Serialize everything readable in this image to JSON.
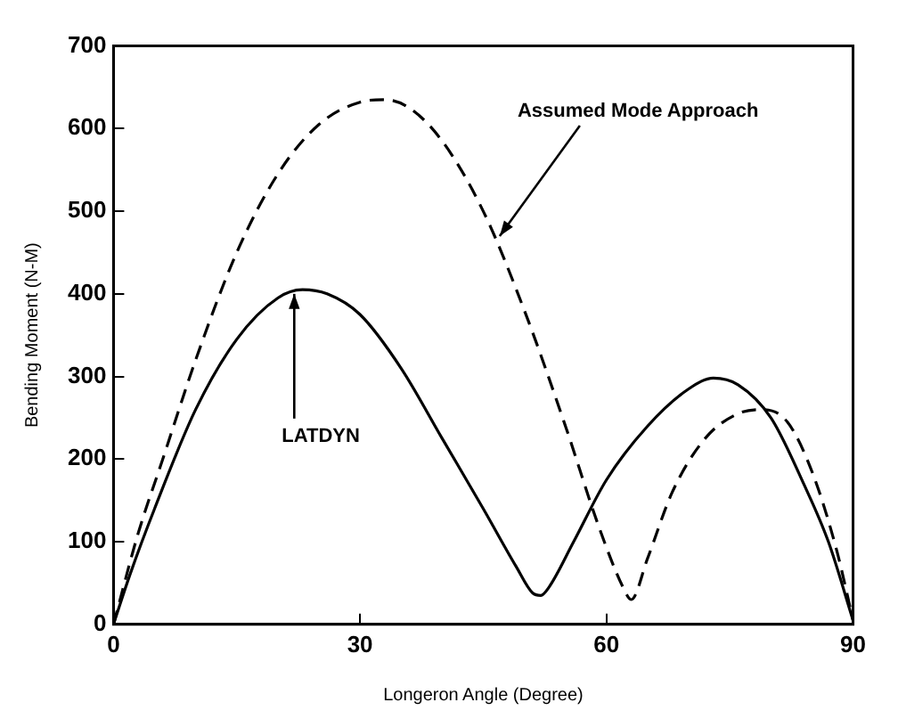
{
  "chart_data": {
    "type": "line",
    "xlabel": "Longeron Angle (Degree)",
    "ylabel": "Bending Moment (N-M)",
    "xlim": [
      0,
      90
    ],
    "xticks": [
      0,
      30,
      60,
      90
    ],
    "ylim": [
      0,
      700
    ],
    "yticks": [
      0,
      100,
      200,
      300,
      400,
      500,
      600,
      700
    ],
    "grid": false,
    "legend": false,
    "marker": "none",
    "series": [
      {
        "color": "#000000",
        "line_style": "solid",
        "x": [
          0,
          2,
          5,
          10,
          15,
          20,
          23,
          26,
          30,
          35,
          40,
          45,
          49,
          51,
          52,
          53,
          56,
          60,
          65,
          70,
          73,
          76,
          80,
          84,
          87,
          90
        ],
        "values": [
          0,
          60,
          140,
          260,
          345,
          395,
          405,
          400,
          375,
          310,
          225,
          140,
          70,
          38,
          35,
          45,
          100,
          175,
          240,
          285,
          298,
          290,
          250,
          170,
          100,
          5
        ]
      },
      {
        "color": "#000000",
        "line_style": "dashed",
        "x": [
          0,
          3,
          6,
          10,
          15,
          20,
          25,
          30,
          33,
          36,
          40,
          45,
          50,
          55,
          59,
          62,
          63,
          65,
          68,
          72,
          76,
          79,
          82,
          85,
          88,
          90
        ],
        "values": [
          0,
          110,
          200,
          320,
          450,
          545,
          605,
          632,
          635,
          625,
          585,
          500,
          380,
          240,
          120,
          45,
          30,
          80,
          160,
          225,
          255,
          260,
          245,
          185,
          90,
          5
        ]
      }
    ],
    "annotations": [
      {
        "text": "Assumed Mode Approach",
        "x": 47,
        "y": 470
      },
      {
        "text": "LATDYN",
        "x": 22,
        "y": 400
      }
    ]
  }
}
